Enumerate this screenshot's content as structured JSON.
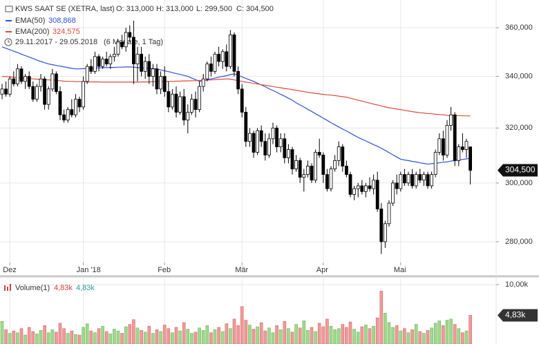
{
  "chart_data": [
    {
      "type": "candlestick",
      "title": "KWS SAAT SE (XETRA, last)",
      "ohlc_text": [
        "O: 313,000",
        "H: 313,000",
        "L: 299,500",
        "C: 304,500"
      ],
      "period": "29.11.2017 - 29.05.2018",
      "span": "(6 Monate, 1 Tag)",
      "last_label": "304,500",
      "log_scale": true,
      "grid": true,
      "up_color": "#ffffff",
      "down_color": "#000000",
      "ylim": [
        269.3,
        371.9
      ],
      "yticks": [
        {
          "value": 280,
          "label": "280,000"
        },
        {
          "value": 300,
          "label": "300,000"
        },
        {
          "value": 320,
          "label": "320,000"
        },
        {
          "value": 340,
          "label": "340,000"
        },
        {
          "value": 360,
          "label": "360,000"
        }
      ],
      "categories": [
        null,
        null,
        "Dez",
        null,
        null,
        null,
        null,
        null,
        null,
        null,
        null,
        null,
        null,
        null,
        null,
        null,
        null,
        null,
        null,
        null,
        null,
        "Jan '18",
        null,
        null,
        null,
        null,
        null,
        null,
        null,
        null,
        null,
        null,
        null,
        null,
        null,
        null,
        null,
        null,
        null,
        null,
        null,
        null,
        "Feb",
        null,
        null,
        null,
        null,
        null,
        null,
        null,
        null,
        null,
        null,
        null,
        null,
        null,
        null,
        null,
        null,
        null,
        null,
        null,
        "Mär",
        null,
        null,
        null,
        null,
        null,
        null,
        null,
        null,
        null,
        null,
        null,
        null,
        null,
        null,
        null,
        null,
        null,
        null,
        null,
        null,
        "Apr",
        null,
        null,
        null,
        null,
        null,
        null,
        null,
        null,
        null,
        null,
        null,
        null,
        null,
        null,
        null,
        null,
        null,
        null,
        null,
        "Mai",
        null,
        null,
        null,
        null,
        null,
        null,
        null,
        null,
        null,
        null,
        null,
        null,
        null,
        null,
        null,
        null,
        null,
        null
      ],
      "candles": [
        [
          333,
          337,
          331,
          335
        ],
        [
          335,
          338,
          332,
          333
        ],
        [
          333,
          340,
          332,
          339
        ],
        [
          339,
          342,
          336,
          337
        ],
        [
          337,
          345,
          336,
          343
        ],
        [
          343,
          344,
          337,
          338
        ],
        [
          338,
          341,
          335,
          340
        ],
        [
          340,
          342,
          335,
          336
        ],
        [
          336,
          338,
          330,
          331
        ],
        [
          331,
          337,
          330,
          336
        ],
        [
          336,
          341,
          334,
          339
        ],
        [
          339,
          340,
          327,
          329
        ],
        [
          329,
          336,
          327,
          335
        ],
        [
          335,
          343,
          334,
          341
        ],
        [
          341,
          342,
          333,
          334
        ],
        [
          334,
          336,
          323,
          325
        ],
        [
          325,
          327,
          322,
          323
        ],
        [
          323,
          328,
          322,
          327
        ],
        [
          327,
          331,
          324,
          325
        ],
        [
          325,
          333,
          324,
          331
        ],
        [
          331,
          332,
          326,
          328
        ],
        [
          328,
          340,
          327,
          338
        ],
        [
          338,
          345,
          337,
          344
        ],
        [
          344,
          347,
          341,
          342
        ],
        [
          342,
          350,
          341,
          348
        ],
        [
          348,
          349,
          342,
          344
        ],
        [
          344,
          348,
          343,
          347
        ],
        [
          347,
          350,
          344,
          345
        ],
        [
          345,
          349,
          343,
          348
        ],
        [
          348,
          352,
          346,
          349
        ],
        [
          349,
          355,
          348,
          354
        ],
        [
          354,
          357,
          351,
          352
        ],
        [
          352,
          360,
          350,
          358
        ],
        [
          358,
          361,
          354,
          356
        ],
        [
          356,
          363,
          337,
          345
        ],
        [
          345,
          352,
          338,
          349
        ],
        [
          349,
          352,
          340,
          342
        ],
        [
          342,
          348,
          339,
          346
        ],
        [
          346,
          349,
          337,
          340
        ],
        [
          340,
          345,
          336,
          343
        ],
        [
          343,
          345,
          333,
          335
        ],
        [
          335,
          342,
          333,
          340
        ],
        [
          340,
          344,
          332,
          334
        ],
        [
          334,
          338,
          326,
          328
        ],
        [
          328,
          335,
          327,
          333
        ],
        [
          333,
          336,
          324,
          326
        ],
        [
          326,
          334,
          325,
          332
        ],
        [
          332,
          335,
          321,
          323
        ],
        [
          323,
          329,
          318,
          326
        ],
        [
          326,
          333,
          325,
          331
        ],
        [
          331,
          334,
          324,
          327
        ],
        [
          327,
          338,
          326,
          336
        ],
        [
          336,
          341,
          334,
          339
        ],
        [
          339,
          346,
          338,
          345
        ],
        [
          345,
          348,
          340,
          342
        ],
        [
          342,
          350,
          341,
          349
        ],
        [
          349,
          352,
          344,
          346
        ],
        [
          346,
          351,
          343,
          350
        ],
        [
          350,
          353,
          342,
          344
        ],
        [
          344,
          359,
          343,
          357
        ],
        [
          357,
          358,
          340,
          342
        ],
        [
          342,
          344,
          333,
          335
        ],
        [
          335,
          337,
          324,
          326
        ],
        [
          326,
          328,
          313,
          315
        ],
        [
          315,
          320,
          313,
          318
        ],
        [
          318,
          319,
          309,
          311
        ],
        [
          311,
          320,
          310,
          319
        ],
        [
          319,
          321,
          313,
          315
        ],
        [
          315,
          318,
          308,
          310
        ],
        [
          310,
          318,
          309,
          316
        ],
        [
          316,
          322,
          314,
          320
        ],
        [
          320,
          321,
          311,
          313
        ],
        [
          313,
          318,
          311,
          316
        ],
        [
          316,
          318,
          307,
          309
        ],
        [
          309,
          314,
          307,
          312
        ],
        [
          312,
          313,
          303,
          305
        ],
        [
          305,
          310,
          304,
          308
        ],
        [
          308,
          309,
          300,
          302
        ],
        [
          302,
          305,
          297,
          303
        ],
        [
          303,
          308,
          302,
          306
        ],
        [
          306,
          307,
          300,
          301
        ],
        [
          301,
          312,
          300,
          311
        ],
        [
          311,
          316,
          309,
          310
        ],
        [
          310,
          311,
          300,
          303
        ],
        [
          303,
          305,
          297,
          298
        ],
        [
          298,
          306,
          297,
          305
        ],
        [
          305,
          310,
          304,
          308
        ],
        [
          308,
          315,
          306,
          313
        ],
        [
          313,
          314,
          304,
          306
        ],
        [
          306,
          308,
          302,
          303
        ],
        [
          303,
          304,
          295,
          296
        ],
        [
          296,
          299,
          294,
          298
        ],
        [
          298,
          300,
          295,
          299
        ],
        [
          299,
          301,
          296,
          297
        ],
        [
          297,
          300,
          295,
          299
        ],
        [
          299,
          302,
          297,
          298
        ],
        [
          298,
          303,
          296,
          301
        ],
        [
          301,
          304,
          290,
          291
        ],
        [
          291,
          293,
          276,
          280
        ],
        [
          280,
          287,
          278,
          286
        ],
        [
          286,
          294,
          285,
          293
        ],
        [
          293,
          301,
          292,
          300
        ],
        [
          300,
          303,
          296,
          298
        ],
        [
          298,
          304,
          297,
          303
        ],
        [
          303,
          305,
          299,
          300
        ],
        [
          300,
          304,
          299,
          303
        ],
        [
          303,
          305,
          298,
          299
        ],
        [
          299,
          304,
          298,
          303
        ],
        [
          303,
          305,
          300,
          301
        ],
        [
          301,
          304,
          299,
          303
        ],
        [
          303,
          304,
          298,
          299
        ],
        [
          299,
          304,
          298,
          303
        ],
        [
          303,
          312,
          302,
          311
        ],
        [
          311,
          318,
          310,
          316
        ],
        [
          316,
          319,
          308,
          310
        ],
        [
          310,
          323,
          309,
          321
        ],
        [
          321,
          328,
          319,
          325
        ],
        [
          325,
          326,
          306,
          308
        ],
        [
          308,
          314,
          306,
          313
        ],
        [
          313,
          318,
          311,
          312
        ],
        [
          312,
          316,
          309,
          315
        ],
        [
          313,
          313,
          299.5,
          304.5
        ]
      ],
      "series": [
        {
          "name": "EMA(50)",
          "value_label": "308,868",
          "color": "#2e4fd6",
          "values": [
            352,
            351.4,
            350.8,
            350.2,
            349.6,
            349,
            348.4,
            347.8,
            347.2,
            346.6,
            346,
            345.5,
            345,
            344.7,
            344.4,
            344.1,
            343.8,
            343.5,
            343.2,
            343,
            343,
            343.1,
            343.2,
            343.3,
            343.3,
            343.4,
            343.5,
            343.5,
            343.6,
            343.6,
            343.7,
            343.7,
            343.8,
            343.8,
            343.7,
            343.5,
            343.4,
            343.3,
            343.2,
            343.1,
            343,
            342.6,
            342.2,
            341.9,
            341.5,
            341.1,
            340.8,
            340.4,
            340,
            339.3,
            338.7,
            338,
            338.3,
            338.7,
            339,
            339.3,
            339.7,
            340,
            340.3,
            340.7,
            341,
            340.4,
            339.8,
            339.2,
            338.6,
            338,
            337.3,
            336.6,
            335.9,
            335.1,
            334.4,
            333.7,
            332.9,
            332.2,
            331.4,
            330.6,
            329.6,
            328.8,
            328,
            327.1,
            326.3,
            325.4,
            324.6,
            323.7,
            322.9,
            322,
            321.2,
            320.4,
            319.6,
            318.9,
            318.1,
            317.3,
            316.5,
            315.8,
            315.2,
            314.5,
            313.8,
            313.2,
            312.5,
            311.7,
            310.9,
            310.1,
            309.3,
            308.5,
            308.2,
            308,
            307.7,
            307.5,
            307.2,
            307,
            306.7,
            306.9,
            307,
            307.2,
            307.4,
            307.5,
            307.8,
            308,
            308.2,
            308.4,
            308.6,
            308.868
          ]
        },
        {
          "name": "EMA(200)",
          "value_label": "324,575",
          "color": "#e2463a",
          "values": [
            340,
            339.9,
            339.8,
            339.6,
            339.5,
            339.4,
            339.3,
            339.2,
            339,
            338.9,
            338.8,
            338.7,
            338.6,
            338.5,
            338.4,
            338.3,
            338.1,
            338,
            338,
            337.9,
            337.9,
            337.9,
            337.8,
            337.8,
            337.8,
            337.8,
            337.7,
            337.7,
            337.7,
            337.7,
            337.7,
            337.7,
            337.7,
            337.7,
            337.7,
            337.7,
            337.8,
            337.8,
            337.8,
            337.9,
            337.9,
            337.9,
            338,
            338,
            338,
            338.1,
            338.1,
            338.2,
            338.2,
            338.3,
            338.3,
            338.4,
            338.4,
            338.5,
            338.6,
            338.7,
            338.8,
            338.9,
            339,
            338.9,
            338.6,
            338.3,
            338,
            337.7,
            337.5,
            337.2,
            337,
            336.7,
            336.5,
            336.2,
            336,
            335.7,
            335.5,
            335.2,
            335,
            334.7,
            334.5,
            334.2,
            334,
            333.7,
            333.5,
            333.3,
            333.1,
            332.9,
            332.7,
            332.6,
            332.4,
            332.2,
            332,
            331.8,
            331.4,
            331,
            330.6,
            330.3,
            329.9,
            329.5,
            329.1,
            328.8,
            328.4,
            328,
            327.7,
            327.5,
            327.2,
            327,
            326.7,
            326.5,
            326.2,
            326,
            325.8,
            325.7,
            325.5,
            325.4,
            325.2,
            325.1,
            325,
            324.8,
            324.7,
            324.7,
            324.7,
            324.6,
            324.6,
            324.575
          ]
        }
      ]
    },
    {
      "type": "bar",
      "title": "Volume(1)",
      "legend_values": [
        {
          "text": "4,83k",
          "color": "#d04040"
        },
        {
          "text": "4,83k",
          "color": "#2a9d9a"
        }
      ],
      "last_label": "4,83k",
      "up_color": "#9fd98c",
      "down_color": "#f09a9a",
      "ylim": [
        0,
        11050
      ],
      "yticks": [
        {
          "value": 10000,
          "label": "10,00k"
        }
      ],
      "values": [
        3800,
        2400,
        1800,
        2200,
        1900,
        2600,
        1500,
        2800,
        2100,
        1700,
        2300,
        3100,
        1900,
        2400,
        2000,
        3500,
        2600,
        1800,
        2200,
        1600,
        1500,
        2800,
        3400,
        2200,
        1900,
        2600,
        3000,
        2100,
        1700,
        2500,
        2200,
        1800,
        2900,
        3300,
        4100,
        2700,
        2300,
        2000,
        3000,
        1800,
        2400,
        2100,
        3200,
        2600,
        1900,
        2800,
        2200,
        3600,
        2500,
        1800,
        2000,
        2700,
        2300,
        3100,
        1900,
        2400,
        2800,
        2100,
        3400,
        2600,
        4200,
        3100,
        6300,
        4000,
        3200,
        2500,
        2900,
        3600,
        2200,
        2700,
        1900,
        3100,
        2400,
        3800,
        2600,
        2000,
        3300,
        2700,
        3900,
        2300,
        2800,
        2100,
        3500,
        2900,
        4200,
        3000,
        2400,
        2600,
        3300,
        2800,
        3700,
        2500,
        2000,
        2900,
        3200,
        2600,
        3000,
        4400,
        8900,
        5200,
        3600,
        2800,
        3100,
        2200,
        2600,
        1900,
        2400,
        3300,
        2100,
        1800,
        2300,
        2700,
        3500,
        3900,
        3100,
        4000,
        4200,
        3300,
        2600,
        1900,
        2200,
        4830
      ]
    }
  ]
}
